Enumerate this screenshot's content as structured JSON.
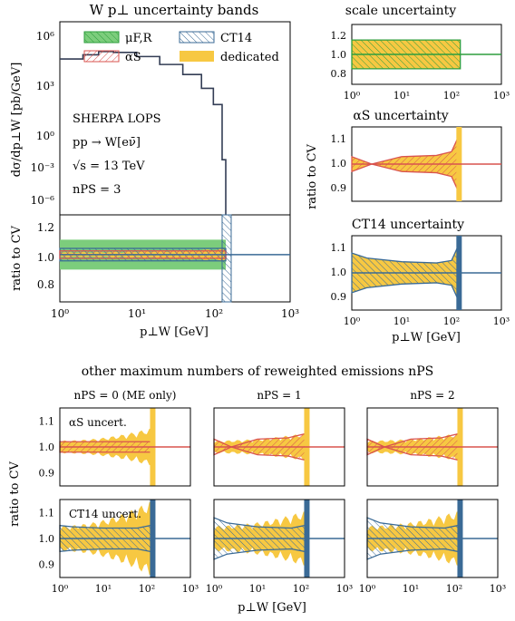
{
  "colors": {
    "green_fill": "#7ccd7c",
    "green_line": "#2e9e3e",
    "red_line": "#d9534f",
    "blue_line": "#3a6a96",
    "orange_fill": "#f7c842",
    "dark_line": "#333d55"
  },
  "main_panel": {
    "title": "W p⊥ uncertainty bands",
    "ylabel_top": "dσ/dp⊥W [pb/GeV]",
    "ylabel_ratio": "ratio to CV",
    "xlabel": "p⊥W [GeV]",
    "legend": {
      "muFR": "μF,R",
      "CT14": "CT14",
      "alphaS": "αS",
      "dedicated": "dedicated"
    },
    "annotation": {
      "line1": "SHERPA LOPS",
      "line2": "pp → W[eν̄]",
      "line3": "√s = 13 TeV",
      "line4": "nPS = 3"
    },
    "ytick_top": [
      "10⁶",
      "10³",
      "10⁰",
      "10⁻³",
      "10⁻⁶"
    ],
    "ytick_ratio": [
      "1.2",
      "1.0",
      "0.8"
    ],
    "xtick": [
      "10⁰",
      "10¹",
      "10²",
      "10³"
    ]
  },
  "right_panels": {
    "ylabel": "ratio to CV",
    "xlabel": "p⊥W [GeV]",
    "scale": {
      "title": "scale uncertainty",
      "yticks": [
        "1.2",
        "1.0",
        "0.8"
      ]
    },
    "alphas": {
      "title": "αS uncertainty",
      "yticks": [
        "1.1",
        "1.0",
        "0.9"
      ]
    },
    "ct14": {
      "title": "CT14 uncertainty",
      "yticks": [
        "1.1",
        "1.0",
        "0.9"
      ]
    },
    "xtick": [
      "10⁰",
      "10¹",
      "10²",
      "10³"
    ]
  },
  "bottom_section": {
    "title": "other maximum numbers of reweighted emissions nPS",
    "ylabel": "ratio to CV",
    "xlabel": "p⊥W [GeV]",
    "col_titles": [
      "nPS = 0 (ME only)",
      "nPS = 1",
      "nPS = 2"
    ],
    "row_labels": [
      "αS uncert.",
      "CT14 uncert."
    ],
    "yticks": [
      "1.1",
      "1.0",
      "0.9"
    ],
    "xtick": [
      "10⁰",
      "10¹",
      "10²",
      "10³"
    ]
  },
  "chart_data": [
    {
      "type": "line",
      "title": "W p⊥ uncertainty bands",
      "x_scale": "log",
      "y_scale": "log",
      "xlim": [
        1,
        1000
      ],
      "ylim": [
        1e-07,
        10000000.0
      ],
      "series": [
        {
          "name": "CV",
          "x": [
            1,
            2,
            3.2,
            5,
            10,
            20,
            40,
            70,
            100,
            130,
            145
          ],
          "y": [
            20000,
            40000,
            70000,
            60000,
            30000,
            8000,
            1500,
            150,
            10,
            0.001,
            1e-07
          ]
        }
      ]
    },
    {
      "type": "area",
      "ylabel": "ratio to CV",
      "x_scale": "log",
      "xlim": [
        1,
        1000
      ],
      "ylim": [
        0.62,
        1.32
      ],
      "series": [
        {
          "name": "μF,R",
          "x": [
            1,
            150
          ],
          "lower": [
            0.88,
            0.88
          ],
          "upper": [
            1.12,
            1.12
          ]
        },
        {
          "name": "CT14",
          "x": [
            1,
            150
          ],
          "lower": [
            0.95,
            0.95
          ],
          "upper": [
            1.05,
            1.05
          ]
        },
        {
          "name": "αS",
          "x": [
            1,
            150
          ],
          "lower": [
            0.97,
            0.97
          ],
          "upper": [
            1.03,
            1.03
          ]
        },
        {
          "name": "dedicated",
          "x": [
            1,
            150
          ],
          "lower": [
            0.98,
            0.98
          ],
          "upper": [
            1.02,
            1.02
          ]
        }
      ]
    },
    {
      "type": "area",
      "title": "scale uncertainty",
      "x_scale": "log",
      "xlim": [
        1,
        1000
      ],
      "ylim": [
        0.75,
        1.25
      ],
      "series": [
        {
          "name": "μF,R",
          "x": [
            1,
            150
          ],
          "lower": [
            0.88,
            0.88
          ],
          "upper": [
            1.12,
            1.12
          ]
        }
      ]
    },
    {
      "type": "area",
      "title": "αS uncertainty",
      "x_scale": "log",
      "xlim": [
        1,
        1000
      ],
      "ylim": [
        0.85,
        1.15
      ],
      "series": [
        {
          "name": "αS",
          "x": [
            1,
            2.5,
            10,
            50,
            100,
            130
          ],
          "lower": [
            0.97,
            1.0,
            0.97,
            0.965,
            0.95,
            0.9
          ],
          "upper": [
            1.03,
            1.0,
            1.03,
            1.035,
            1.05,
            1.1
          ]
        }
      ]
    },
    {
      "type": "area",
      "title": "CT14 uncertainty",
      "x_scale": "log",
      "xlim": [
        1,
        1000
      ],
      "ylim": [
        0.85,
        1.15
      ],
      "series": [
        {
          "name": "CT14",
          "x": [
            1,
            2,
            10,
            50,
            100,
            130
          ],
          "lower": [
            0.92,
            0.94,
            0.955,
            0.96,
            0.95,
            0.9
          ],
          "upper": [
            1.08,
            1.06,
            1.045,
            1.04,
            1.05,
            1.1
          ]
        }
      ]
    }
  ]
}
